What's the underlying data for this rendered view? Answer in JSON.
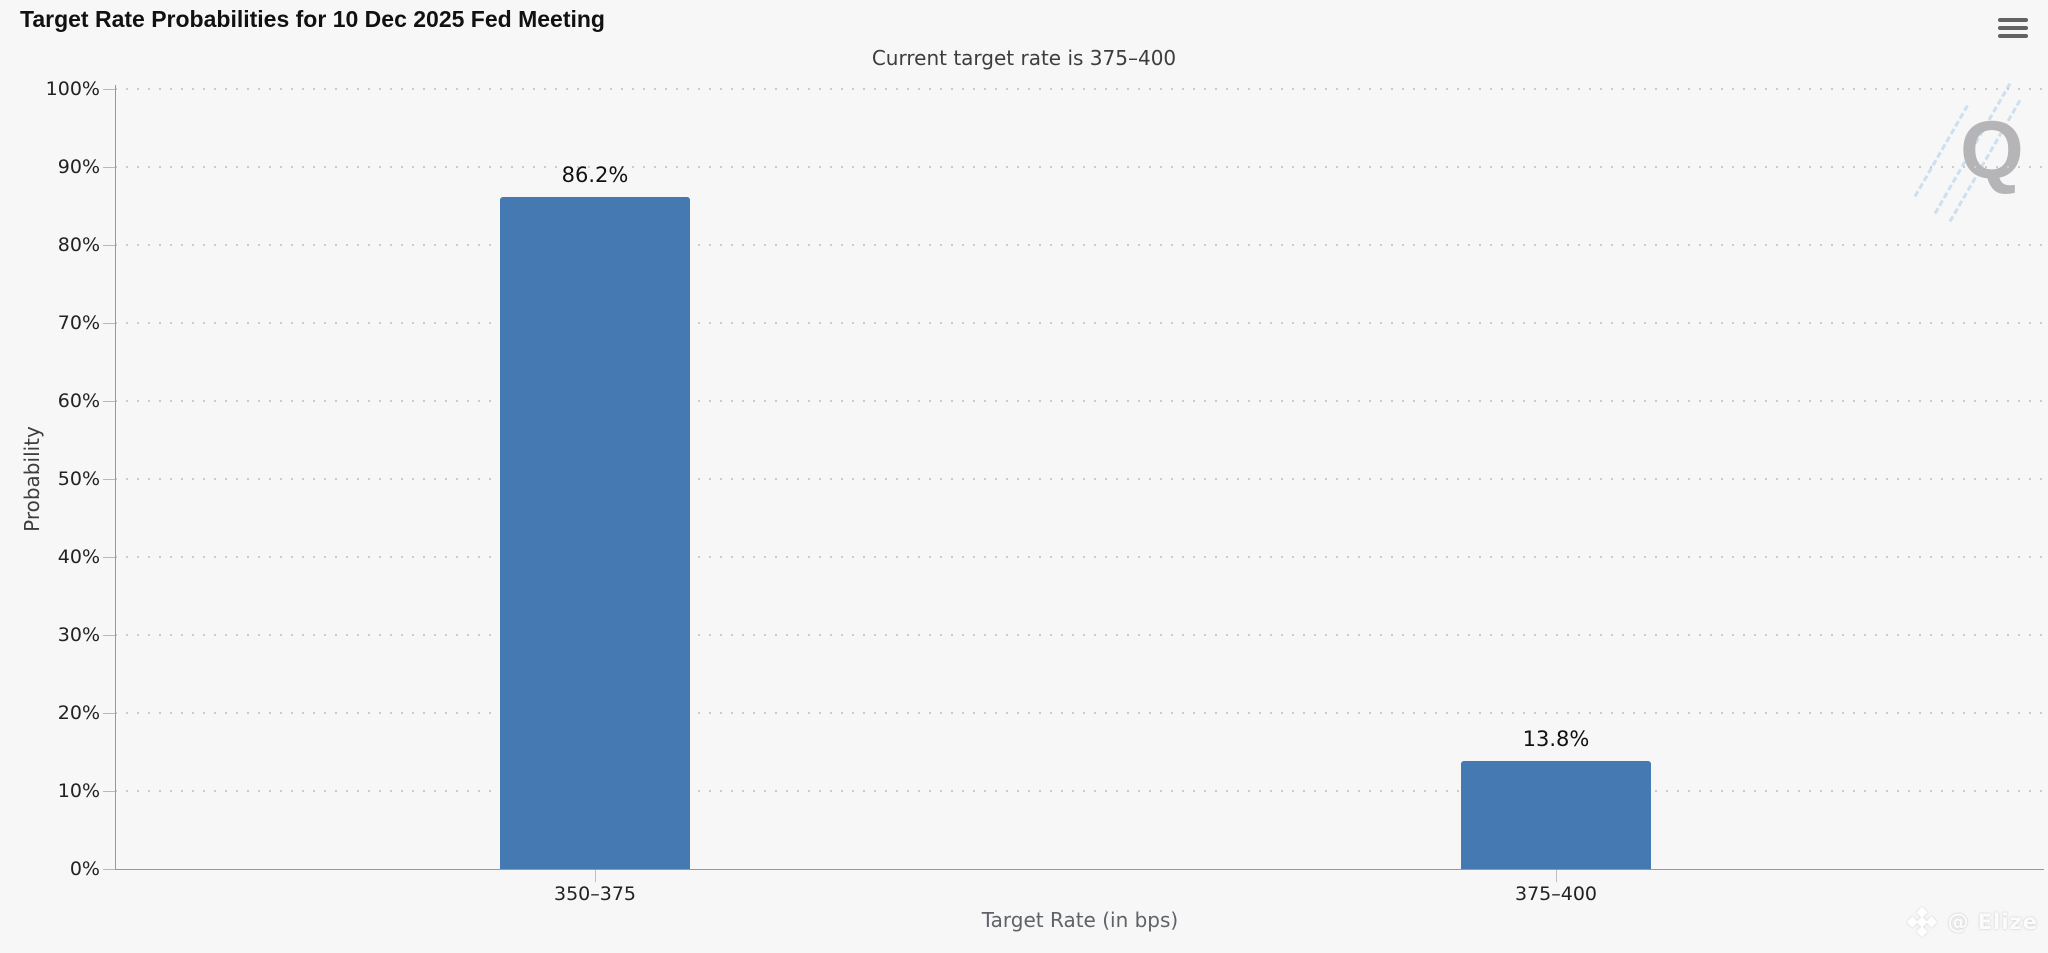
{
  "chart_data": {
    "type": "bar",
    "title": "Target Rate Probabilities for 10 Dec 2025 Fed Meeting",
    "subtitle": "Current target rate is 375–400",
    "categories": [
      "350–375",
      "375–400"
    ],
    "values": [
      86.2,
      13.8
    ],
    "value_labels": [
      "86.2%",
      "13.8%"
    ],
    "xlabel": "Target Rate (in bps)",
    "ylabel": "Probability",
    "ylim": [
      0,
      100
    ],
    "ytick_step": 10,
    "ytick_suffix": "%",
    "bar_color": "#4579b2",
    "grid": "dotted horizontal",
    "legend": "none"
  },
  "watermarks": {
    "logo_letter": "Q",
    "credit": "@ Elize"
  },
  "colors": {
    "background": "#f7f7f7",
    "bar": "#4579b2",
    "axis_line": "#999999",
    "grid_dot": "#cbcbcb",
    "title_text": "#111111",
    "subtitle_text": "#3d3d3d",
    "axis_label": "#222222",
    "axis_title": "#5f6368",
    "menu_icon": "#636363",
    "q_watermark": "#b5b5b7",
    "hatch_blue": "#c9ddf0"
  }
}
